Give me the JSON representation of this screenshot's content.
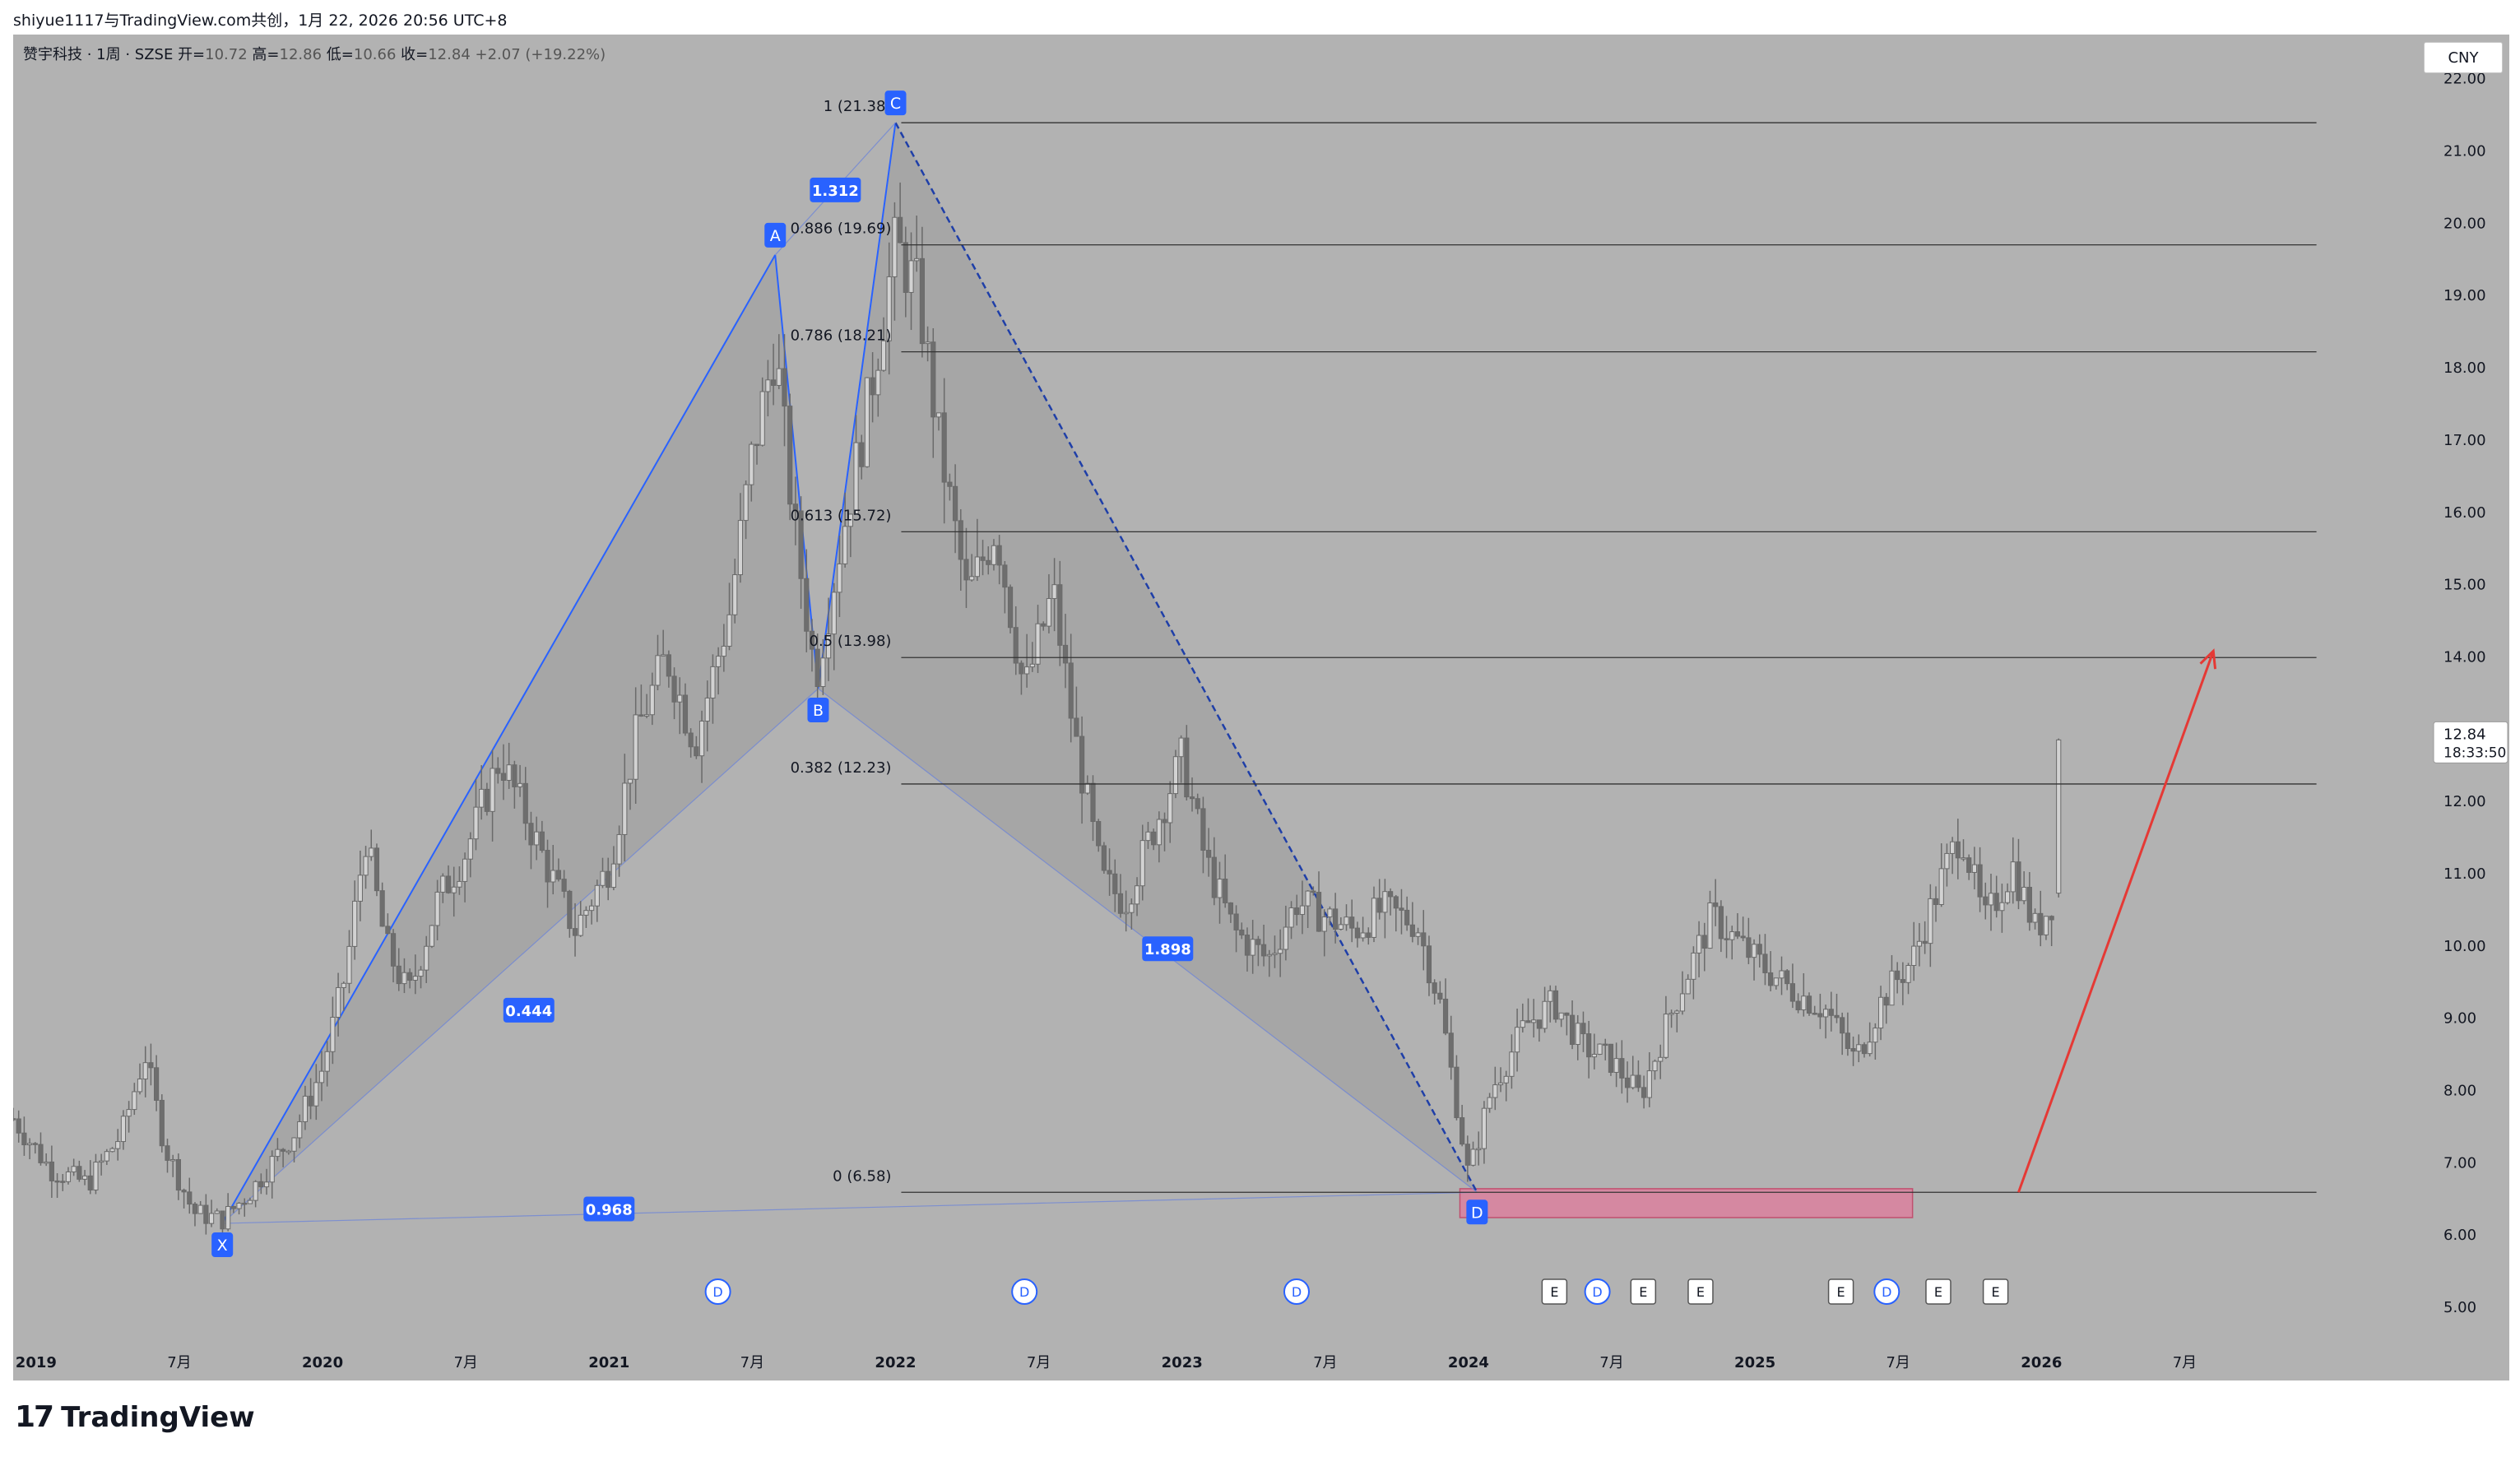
{
  "header": {
    "attribution": "shiyue1117与TradingView.com共创，1月 22, 2026 20:56 UTC+8",
    "symbol": "赞宇科技 · 1周 · SZSE",
    "ohlc": {
      "open_label": "开=",
      "open": "10.72",
      "high_label": "高=",
      "high": "12.86",
      "low_label": "低=",
      "low": "10.66",
      "close_label": "收=",
      "close": "12.84",
      "change": "+2.07 (+19.22%)"
    }
  },
  "currency": "CNY",
  "price_badge": {
    "price": "12.84",
    "countdown": "18:33:50"
  },
  "brand": {
    "logo": "17",
    "name": "TradingView"
  },
  "colors": {
    "background": "#b2b2b2",
    "pattern_line": "#2962ff",
    "badge": "#2962ff",
    "fib_line": "#333333",
    "arrow": "#e53935",
    "zone_fill": "#e07a9b",
    "candle": "#6e6e6e"
  },
  "chart_data": {
    "type": "candlestick",
    "title": "",
    "y_axis": {
      "min": 4.5,
      "max": 22.6,
      "ticks": [
        "22.00",
        "21.00",
        "20.00",
        "19.00",
        "18.00",
        "17.00",
        "16.00",
        "15.00",
        "14.00",
        "13.00",
        "12.00",
        "11.00",
        "10.00",
        "9.00",
        "8.00",
        "7.00",
        "6.00",
        "5.00"
      ]
    },
    "x_axis": {
      "min": 2018.92,
      "max": 2027.3,
      "ticks": [
        {
          "label": "2019",
          "t": 2019.0
        },
        {
          "label": "7月",
          "t": 2019.5
        },
        {
          "label": "2020",
          "t": 2020.0
        },
        {
          "label": "7月",
          "t": 2020.5
        },
        {
          "label": "2021",
          "t": 2021.0
        },
        {
          "label": "7月",
          "t": 2021.5
        },
        {
          "label": "2022",
          "t": 2022.0
        },
        {
          "label": "7月",
          "t": 2022.5
        },
        {
          "label": "2023",
          "t": 2023.0
        },
        {
          "label": "7月",
          "t": 2023.5
        },
        {
          "label": "2024",
          "t": 2024.0
        },
        {
          "label": "7月",
          "t": 2024.5
        },
        {
          "label": "2025",
          "t": 2025.0
        },
        {
          "label": "7月",
          "t": 2025.5
        },
        {
          "label": "2026",
          "t": 2026.0
        },
        {
          "label": "7月",
          "t": 2026.5
        }
      ]
    },
    "price_path": [
      [
        2018.92,
        7.6
      ],
      [
        2019.05,
        6.9
      ],
      [
        2019.18,
        6.7
      ],
      [
        2019.3,
        7.4
      ],
      [
        2019.38,
        8.5
      ],
      [
        2019.45,
        7.2
      ],
      [
        2019.55,
        6.3
      ],
      [
        2019.65,
        6.2
      ],
      [
        2019.75,
        6.6
      ],
      [
        2019.9,
        7.4
      ],
      [
        2020.0,
        8.3
      ],
      [
        2020.08,
        9.6
      ],
      [
        2020.15,
        11.5
      ],
      [
        2020.22,
        10.0
      ],
      [
        2020.3,
        9.3
      ],
      [
        2020.4,
        10.6
      ],
      [
        2020.5,
        11.3
      ],
      [
        2020.62,
        12.6
      ],
      [
        2020.75,
        11.4
      ],
      [
        2020.88,
        10.2
      ],
      [
        2021.0,
        11.1
      ],
      [
        2021.1,
        13.0
      ],
      [
        2021.2,
        14.0
      ],
      [
        2021.3,
        12.8
      ],
      [
        2021.42,
        14.6
      ],
      [
        2021.5,
        16.8
      ],
      [
        2021.58,
        18.3
      ],
      [
        2021.64,
        16.0
      ],
      [
        2021.72,
        13.7
      ],
      [
        2021.82,
        15.8
      ],
      [
        2021.9,
        17.4
      ],
      [
        2022.0,
        19.7
      ],
      [
        2022.08,
        19.0
      ],
      [
        2022.15,
        17.0
      ],
      [
        2022.25,
        14.8
      ],
      [
        2022.35,
        15.8
      ],
      [
        2022.45,
        13.5
      ],
      [
        2022.55,
        14.9
      ],
      [
        2022.62,
        13.0
      ],
      [
        2022.72,
        10.9
      ],
      [
        2022.8,
        10.6
      ],
      [
        2022.9,
        11.6
      ],
      [
        2023.0,
        12.6
      ],
      [
        2023.08,
        11.2
      ],
      [
        2023.18,
        10.2
      ],
      [
        2023.3,
        9.8
      ],
      [
        2023.4,
        10.6
      ],
      [
        2023.5,
        10.4
      ],
      [
        2023.6,
        10.2
      ],
      [
        2023.7,
        10.5
      ],
      [
        2023.82,
        10.3
      ],
      [
        2023.9,
        9.2
      ],
      [
        2024.0,
        6.8
      ],
      [
        2024.08,
        8.0
      ],
      [
        2024.2,
        8.9
      ],
      [
        2024.3,
        9.2
      ],
      [
        2024.4,
        8.6
      ],
      [
        2024.5,
        8.4
      ],
      [
        2024.6,
        7.9
      ],
      [
        2024.72,
        9.2
      ],
      [
        2024.85,
        10.4
      ],
      [
        2025.0,
        9.8
      ],
      [
        2025.12,
        9.4
      ],
      [
        2025.25,
        9.1
      ],
      [
        2025.35,
        8.4
      ],
      [
        2025.45,
        9.3
      ],
      [
        2025.55,
        9.8
      ],
      [
        2025.65,
        10.9
      ],
      [
        2025.72,
        11.6
      ],
      [
        2025.8,
        10.3
      ],
      [
        2025.9,
        11.1
      ],
      [
        2025.98,
        10.2
      ],
      [
        2026.05,
        10.7
      ],
      [
        2026.06,
        12.84
      ]
    ],
    "harmonic_pattern": {
      "points": [
        {
          "label": "X",
          "t": 2019.65,
          "p": 6.15
        },
        {
          "label": "A",
          "t": 2021.58,
          "p": 19.55
        },
        {
          "label": "B",
          "t": 2021.73,
          "p": 13.55
        },
        {
          "label": "C",
          "t": 2022.0,
          "p": 21.38
        },
        {
          "label": "D",
          "t": 2024.03,
          "p": 6.58
        }
      ],
      "ratios": [
        {
          "label": "0.444",
          "t": 2020.72,
          "p": 9.1
        },
        {
          "label": "1.312",
          "t": 2021.79,
          "p": 20.45
        },
        {
          "label": "1.898",
          "t": 2022.95,
          "p": 9.95
        },
        {
          "label": "0.968",
          "t": 2021.0,
          "p": 6.35
        }
      ]
    },
    "fibonacci": {
      "t_start": 2022.02,
      "t_end": 2026.96,
      "levels": [
        {
          "label": "1 (21.38)",
          "p": 21.38
        },
        {
          "label": "0.886 (19.69)",
          "p": 19.69
        },
        {
          "label": "0.786 (18.21)",
          "p": 18.21
        },
        {
          "label": "0.613 (15.72)",
          "p": 15.72
        },
        {
          "label": "0.5 (13.98)",
          "p": 13.98
        },
        {
          "label": "0.382 (12.23)",
          "p": 12.23
        },
        {
          "label": "0 (6.58)",
          "p": 6.58
        }
      ]
    },
    "support_zone": {
      "t1": 2023.97,
      "t2": 2025.55,
      "p1": 6.63,
      "p2": 6.23
    },
    "arrow": {
      "t1": 2025.92,
      "p1": 6.58,
      "t2": 2026.6,
      "p2": 14.07
    },
    "event_markers": [
      {
        "type": "D",
        "t": 2021.38
      },
      {
        "type": "D",
        "t": 2022.45
      },
      {
        "type": "D",
        "t": 2023.4
      },
      {
        "type": "E",
        "t": 2024.3
      },
      {
        "type": "D",
        "t": 2024.45
      },
      {
        "type": "E",
        "t": 2024.61
      },
      {
        "type": "E",
        "t": 2024.81
      },
      {
        "type": "E",
        "t": 2025.3
      },
      {
        "type": "D",
        "t": 2025.46
      },
      {
        "type": "E",
        "t": 2025.64
      },
      {
        "type": "E",
        "t": 2025.84
      }
    ]
  }
}
